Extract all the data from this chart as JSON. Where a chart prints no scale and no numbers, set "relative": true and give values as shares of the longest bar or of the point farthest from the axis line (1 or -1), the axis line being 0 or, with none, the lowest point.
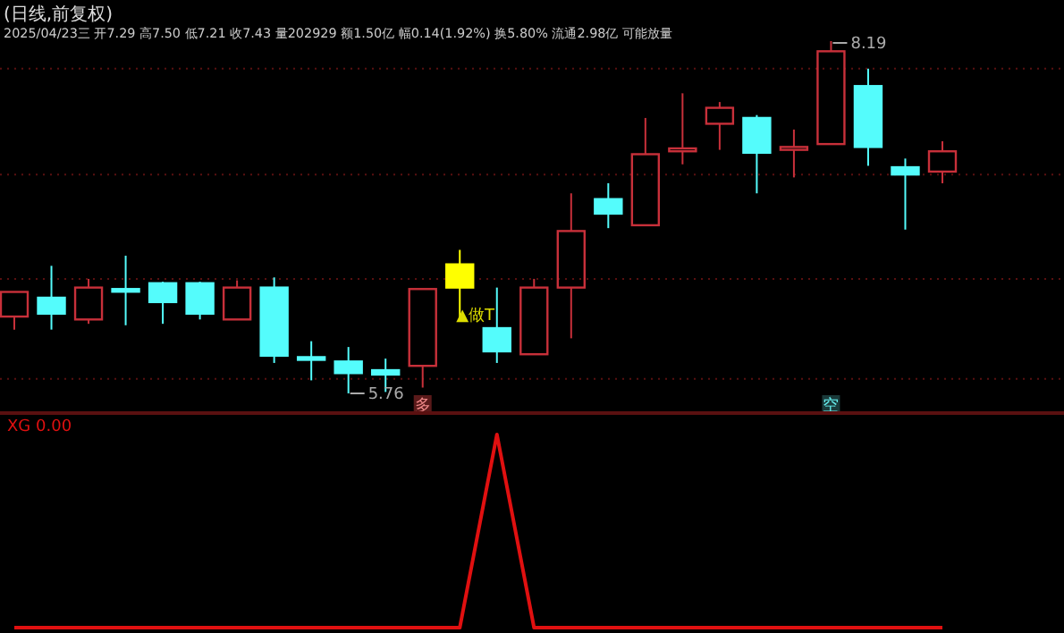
{
  "chart_data": [
    {
      "type": "candlestick",
      "title": "(日线,前复权)",
      "subtitle": "2025/04/23三 开7.29 高7.50 低7.21 收7.43 量202929 额1.50亿 幅0.14(1.92%) 换5.80% 流通2.98亿 可能放量",
      "categories": [
        null,
        null,
        null,
        null,
        null,
        null,
        null,
        null,
        null,
        null,
        null,
        null,
        null,
        null,
        null,
        null,
        null,
        null,
        null,
        null,
        null,
        null,
        null,
        null,
        null,
        null
      ],
      "ohlc": [
        [
          6.29,
          6.46,
          6.2,
          6.46
        ],
        [
          6.42,
          6.64,
          6.2,
          6.31
        ],
        [
          6.27,
          6.55,
          6.24,
          6.49
        ],
        [
          6.48,
          6.71,
          6.23,
          6.47
        ],
        [
          6.52,
          6.53,
          6.24,
          6.39
        ],
        [
          6.52,
          6.53,
          6.27,
          6.31
        ],
        [
          6.27,
          6.54,
          6.27,
          6.49
        ],
        [
          6.49,
          6.56,
          5.97,
          6.02
        ],
        [
          6.01,
          6.12,
          5.85,
          6.0
        ],
        [
          5.98,
          6.08,
          5.76,
          5.9
        ],
        [
          5.92,
          6.0,
          5.77,
          5.89
        ],
        [
          5.95,
          6.48,
          5.8,
          6.48
        ],
        [
          6.65,
          6.75,
          6.28,
          6.49
        ],
        [
          6.21,
          6.49,
          5.97,
          6.05
        ],
        [
          6.03,
          6.55,
          6.03,
          6.49
        ],
        [
          6.49,
          7.14,
          6.14,
          6.88
        ],
        [
          7.1,
          7.21,
          6.9,
          7.0
        ],
        [
          6.92,
          7.66,
          6.92,
          7.41
        ],
        [
          7.43,
          7.83,
          7.34,
          7.45
        ],
        [
          7.62,
          7.77,
          7.44,
          7.73
        ],
        [
          7.66,
          7.68,
          7.14,
          7.42
        ],
        [
          7.44,
          7.58,
          7.25,
          7.46
        ],
        [
          7.48,
          8.19,
          7.48,
          8.12
        ],
        [
          7.88,
          8.0,
          7.33,
          7.46
        ],
        [
          7.32,
          7.38,
          6.89,
          7.27
        ],
        [
          7.29,
          7.5,
          7.21,
          7.43
        ]
      ],
      "colors": [
        "#c8303a",
        "#54fcfc",
        "#c8303a",
        "#54fcfc",
        "#54fcfc",
        "#54fcfc",
        "#c8303a",
        "#54fcfc",
        "#54fcfc",
        "#54fcfc",
        "#54fcfc",
        "#c8303a",
        "#ffff00",
        "#54fcfc",
        "#c8303a",
        "#c8303a",
        "#54fcfc",
        "#c8303a",
        "#c8303a",
        "#c8303a",
        "#54fcfc",
        "#c8303a",
        "#c8303a",
        "#54fcfc",
        "#54fcfc",
        "#c8303a"
      ],
      "yticks": [
        {
          "value": 8.0,
          "label": null
        },
        {
          "value": 7.27,
          "label": null
        },
        {
          "value": 6.55,
          "label": null
        },
        {
          "value": 5.86,
          "label": null
        }
      ],
      "grid": "y",
      "annotations": [
        {
          "text": "5.76",
          "y": 5.76
        },
        "8.19",
        "多",
        "▲做T",
        "空"
      ]
    },
    {
      "type": "line",
      "relative": true,
      "categories": [
        null,
        null,
        null,
        null,
        null,
        null,
        null,
        null,
        null,
        null,
        null,
        null,
        null,
        null,
        null,
        null,
        null,
        null,
        null,
        null,
        null,
        null,
        null,
        null,
        null,
        null
      ],
      "series": [
        {
          "name": "XG",
          "color": "#e01010",
          "values": [
            0,
            0,
            0,
            0,
            0,
            0,
            0,
            0,
            0,
            0,
            0,
            0,
            0,
            1,
            0,
            0,
            0,
            0,
            0,
            0,
            0,
            0,
            0,
            0,
            0,
            0
          ]
        }
      ],
      "annotations": [
        "0.00"
      ]
    }
  ]
}
